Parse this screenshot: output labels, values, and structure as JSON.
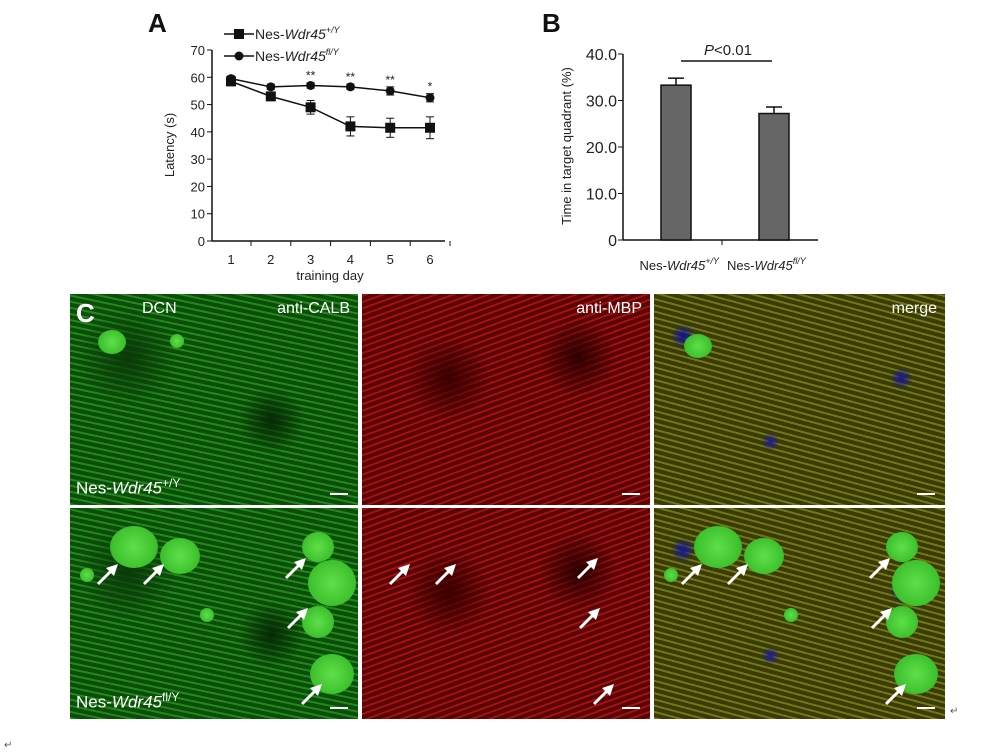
{
  "panel_labels": {
    "a": "A",
    "b": "B",
    "c": "C"
  },
  "chart_data": [
    {
      "type": "line",
      "panel": "A",
      "xlabel": "training day",
      "ylabel": "Latency (s)",
      "x": [
        1,
        2,
        3,
        4,
        5,
        6
      ],
      "xlim": [
        0.5,
        6.4
      ],
      "ylim": [
        0,
        70
      ],
      "yticks": [
        0,
        10,
        20,
        30,
        40,
        50,
        60,
        70
      ],
      "legend_placement": "top-left",
      "series": [
        {
          "name_prefix": "Nes-",
          "name_gene": "Wdr45",
          "name_sup": "+/Y",
          "marker": "square",
          "values": [
            58.5,
            53,
            49,
            42,
            41.5,
            41.5
          ],
          "errors": [
            1,
            1.5,
            2.5,
            3.5,
            3.5,
            4
          ]
        },
        {
          "name_prefix": "Nes-",
          "name_gene": "Wdr45",
          "name_sup": "fl/Y",
          "marker": "circle",
          "values": [
            59.5,
            56.5,
            57,
            56.5,
            55,
            52.5
          ],
          "errors": [
            1,
            1,
            1,
            1,
            1.5,
            1.5
          ]
        }
      ],
      "significance": [
        {
          "x": 3,
          "label": "**"
        },
        {
          "x": 4,
          "label": "**"
        },
        {
          "x": 5,
          "label": "**"
        },
        {
          "x": 6,
          "label": "*"
        }
      ]
    },
    {
      "type": "bar",
      "panel": "B",
      "ylabel": "Time in target quadrant (%)",
      "ylim": [
        0,
        40
      ],
      "yticks": [
        "0",
        "10.0",
        "20.0",
        "30.0",
        "40.0"
      ],
      "categories": [
        {
          "prefix": "Nes-",
          "gene": "Wdr45",
          "sup": "+/Y"
        },
        {
          "prefix": "Nes-",
          "gene": "Wdr45",
          "sup": "fl/Y"
        }
      ],
      "values": [
        33.3,
        27.2
      ],
      "errors": [
        1.5,
        1.4
      ],
      "bar_color": "#666666",
      "annotation": {
        "p": "P",
        "rest": "<0.01"
      }
    }
  ],
  "panel_c": {
    "region": "DCN",
    "stain1": "anti-CALB",
    "stain2": "anti-MBP",
    "merge": "merge",
    "row1": {
      "prefix": "Nes-",
      "gene": "Wdr45",
      "sup": "+/Y"
    },
    "row2": {
      "prefix": "Nes-",
      "gene": "Wdr45",
      "sup": "fl/Y"
    }
  },
  "return_mark": "↵"
}
